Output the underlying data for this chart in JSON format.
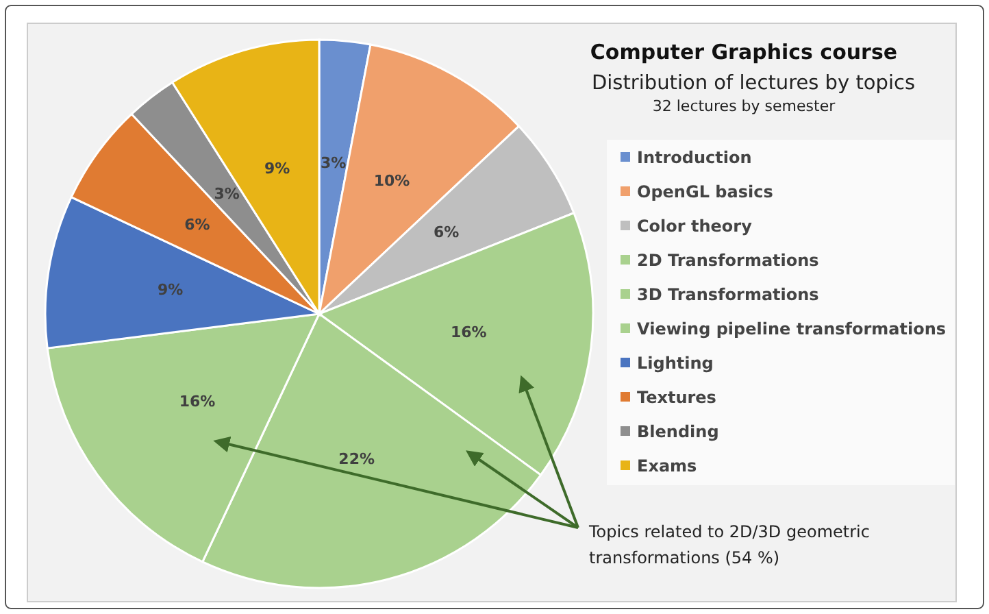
{
  "chart_data": {
    "type": "pie",
    "title": "Computer Graphics course",
    "subtitle": "Distribution of lectures by topics",
    "annotations": [
      "32 lectures by semester",
      "Topics related to 2D/3D geometric transformations (54 %)"
    ],
    "categories": [
      "Introduction",
      "OpenGL basics",
      "Color theory",
      "2D Transformations",
      "3D Transformations",
      "Viewing pipeline transformations",
      "Lighting",
      "Textures",
      "Blending",
      "Exams"
    ],
    "values": [
      3,
      10,
      6,
      16,
      22,
      16,
      9,
      6,
      3,
      9
    ],
    "value_labels": [
      "3%",
      "10%",
      "6%",
      "16%",
      "22%",
      "16%",
      "9%",
      "6%",
      "3%",
      "9%"
    ],
    "colors": [
      "#6a8fcf",
      "#f0a06c",
      "#bfbfbf",
      "#a9d18e",
      "#a9d18e",
      "#a9d18e",
      "#4a74c0",
      "#e07b32",
      "#8e8e8e",
      "#e8b416"
    ],
    "legend": "right"
  }
}
